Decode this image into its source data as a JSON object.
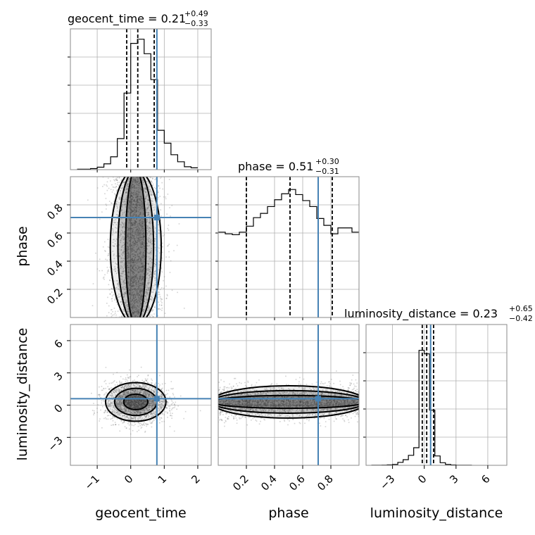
{
  "figure": {
    "type": "corner-plot",
    "colors": {
      "truth": "#4682b4",
      "hist": "#000000",
      "grid": "#b0b0b0",
      "density": "#000000",
      "points": "#808080"
    },
    "grid": true
  },
  "chart_data": [
    {
      "type": "histogram",
      "panel": "geocent_time",
      "title": {
        "name": "geocent_time",
        "value": "0.21",
        "plus": "+0.49",
        "minus": "−0.33"
      },
      "xlim": [
        -1.8,
        2.4
      ],
      "bin_edges": [
        -1.6,
        -1.4,
        -1.2,
        -1.0,
        -0.8,
        -0.6,
        -0.4,
        -0.2,
        0.0,
        0.2,
        0.4,
        0.6,
        0.8,
        1.0,
        1.2,
        1.4,
        1.6,
        1.8,
        2.0
      ],
      "counts": [
        2,
        2,
        5,
        12,
        28,
        62,
        150,
        370,
        610,
        630,
        560,
        435,
        190,
        128,
        72,
        38,
        14,
        9
      ],
      "ylim": [
        0,
        680
      ],
      "quantiles": [
        -0.12,
        0.21,
        0.7
      ],
      "truth": 0.78,
      "xticks": [
        -1,
        0,
        1,
        2
      ],
      "xtick_labels": [
        "−1",
        "0",
        "1",
        "2"
      ],
      "xlabel": "geocent_time"
    },
    {
      "type": "histogram",
      "panel": "phase",
      "title": {
        "name": "phase",
        "value": "0.51",
        "plus": "+0.30",
        "minus": "−0.31"
      },
      "xlim": [
        0.0,
        1.0
      ],
      "bin_edges": [
        0.0,
        0.05,
        0.1,
        0.15,
        0.2,
        0.25,
        0.3,
        0.35,
        0.4,
        0.45,
        0.5,
        0.55,
        0.6,
        0.65,
        0.7,
        0.75,
        0.8,
        0.85,
        0.9,
        0.95,
        1.0
      ],
      "counts": [
        200,
        198,
        197,
        200,
        207,
        217,
        222,
        230,
        238,
        245,
        250,
        244,
        237,
        230,
        216,
        208,
        198,
        205,
        205,
        200
      ],
      "ylim": [
        100,
        265
      ],
      "quantiles": [
        0.2,
        0.51,
        0.81
      ],
      "truth": 0.71,
      "xticks": [
        0.2,
        0.4,
        0.6,
        0.8
      ],
      "xtick_labels": [
        "0.2",
        "0.4",
        "0.6",
        "0.8"
      ],
      "xlabel": "phase"
    },
    {
      "type": "histogram",
      "panel": "luminosity_distance",
      "title": {
        "name": "luminosity_distance",
        "value": "0.23",
        "plus": "+0.65",
        "minus": "−0.42"
      },
      "xlim": [
        -5.5,
        7.8
      ],
      "bin_edges": [
        -5.0,
        -4.5,
        -4.0,
        -3.5,
        -3.0,
        -2.5,
        -2.0,
        -1.5,
        -1.0,
        -0.5,
        0.0,
        0.5,
        1.0,
        1.5,
        2.0,
        2.5,
        3.0,
        3.5,
        4.0,
        4.5
      ],
      "counts": [
        1,
        1,
        2,
        4,
        8,
        25,
        48,
        85,
        150,
        980,
        950,
        470,
        80,
        22,
        8,
        3,
        1,
        1,
        1
      ],
      "ylim": [
        0,
        1200
      ],
      "quantiles": [
        -0.19,
        0.23,
        0.88
      ],
      "truth": 0.6,
      "xticks": [
        -3,
        0,
        3,
        6
      ],
      "xtick_labels": [
        "−3",
        "0",
        "3",
        "6"
      ],
      "xlabel": "luminosity_distance"
    },
    {
      "type": "scatter",
      "panel": "geocent_time vs phase",
      "xlim": [
        -1.8,
        2.4
      ],
      "ylim": [
        0.0,
        1.0
      ],
      "truth": [
        0.78,
        0.71
      ],
      "yticks": [
        0.2,
        0.4,
        0.6,
        0.8
      ],
      "ytick_labels": [
        "0.2",
        "0.4",
        "0.6",
        "0.8"
      ],
      "ylabel": "phase",
      "distribution": {
        "x_center": 0.15,
        "x_spread": 0.38,
        "y_range": [
          0.0,
          1.0
        ],
        "n_points": 2500
      }
    },
    {
      "type": "scatter",
      "panel": "geocent_time vs luminosity_distance",
      "xlim": [
        -1.8,
        2.4
      ],
      "ylim": [
        -5.6,
        7.5
      ],
      "truth": [
        0.78,
        0.6
      ],
      "yticks": [
        -3,
        0,
        3,
        6
      ],
      "ytick_labels": [
        "−3",
        "0",
        "3",
        "6"
      ],
      "ylabel": "luminosity_distance",
      "distribution": {
        "x_center": 0.15,
        "x_spread": 0.45,
        "y_center": 0.3,
        "y_spread": 0.9,
        "n_points": 2500
      }
    },
    {
      "type": "scatter",
      "panel": "phase vs luminosity_distance",
      "xlim": [
        0.0,
        1.0
      ],
      "ylim": [
        -5.6,
        7.5
      ],
      "truth": [
        0.71,
        0.6
      ],
      "distribution": {
        "x_range": [
          0.0,
          1.0
        ],
        "y_center": 0.3,
        "y_spread": 0.75,
        "n_points": 2500
      }
    }
  ]
}
